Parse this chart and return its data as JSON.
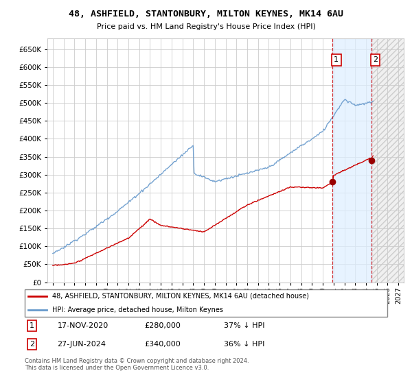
{
  "title": "48, ASHFIELD, STANTONBURY, MILTON KEYNES, MK14 6AU",
  "subtitle": "Price paid vs. HM Land Registry's House Price Index (HPI)",
  "legend_line1": "48, ASHFIELD, STANTONBURY, MILTON KEYNES, MK14 6AU (detached house)",
  "legend_line2": "HPI: Average price, detached house, Milton Keynes",
  "footer": "Contains HM Land Registry data © Crown copyright and database right 2024.\nThis data is licensed under the Open Government Licence v3.0.",
  "sale1_label": "1",
  "sale2_label": "2",
  "sale1_date": "17-NOV-2020",
  "sale1_price": "£280,000",
  "sale1_hpi": "37% ↓ HPI",
  "sale2_date": "27-JUN-2024",
  "sale2_price": "£340,000",
  "sale2_hpi": "36% ↓ HPI",
  "sale1_year": 2020.88,
  "sale1_value": 280000,
  "sale2_year": 2024.49,
  "sale2_value": 340000,
  "hpi_color": "#6699cc",
  "price_color": "#cc0000",
  "sale_marker_color": "#990000",
  "shaded_color": "#ddeeff",
  "grid_color": "#cccccc",
  "ylim": [
    0,
    680000
  ],
  "yticks": [
    0,
    50000,
    100000,
    150000,
    200000,
    250000,
    300000,
    350000,
    400000,
    450000,
    500000,
    550000,
    600000,
    650000
  ],
  "xlim_start": 1994.5,
  "xlim_end": 2027.5
}
